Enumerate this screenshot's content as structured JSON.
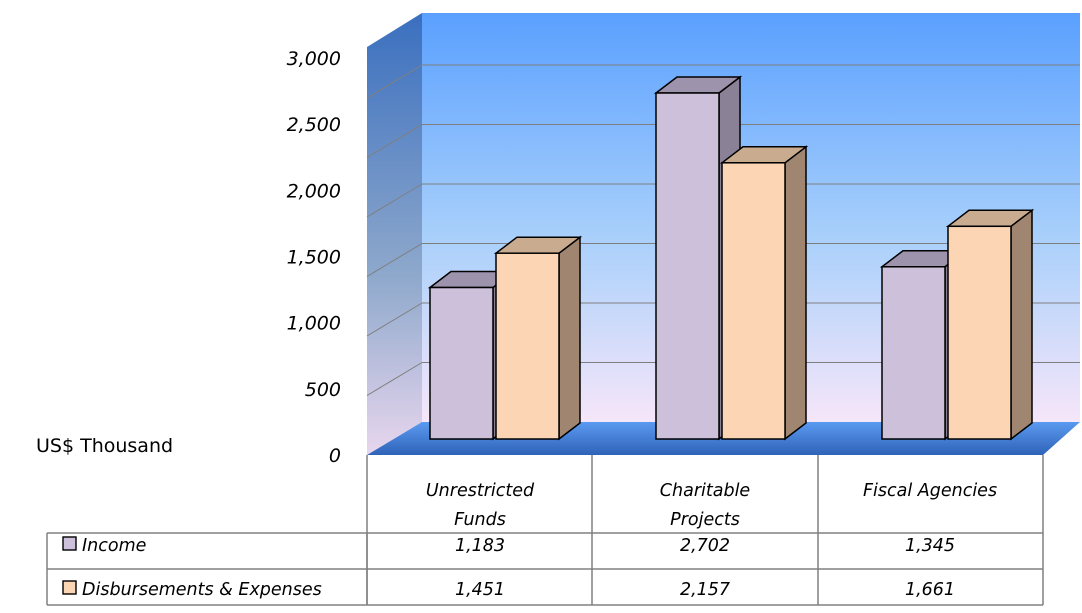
{
  "chart_data": {
    "type": "bar",
    "categories": [
      "Unrestricted Funds",
      "Charitable Projects",
      "Fiscal Agencies"
    ],
    "category_lines": [
      [
        "Unrestricted",
        "Funds"
      ],
      [
        "Charitable",
        "Projects"
      ],
      [
        "Fiscal Agencies"
      ]
    ],
    "series": [
      {
        "name": "Income",
        "values": [
          1183,
          2702,
          1345
        ],
        "value_labels": [
          "1,183",
          "2,702",
          "1,345"
        ],
        "color": "#ccc0da",
        "side_color": "#8a8196"
      },
      {
        "name": "Disbursements & Expenses",
        "values": [
          1451,
          2157,
          1661
        ],
        "value_labels": [
          "1,451",
          "2,157",
          "1,661"
        ],
        "color": "#fcd5b4",
        "side_color": "#a08670"
      }
    ],
    "ylabel": "US$ Thousand",
    "ylim": [
      0,
      3000
    ],
    "yticks": [
      0,
      500,
      1000,
      1500,
      2000,
      2500,
      3000
    ],
    "ytick_labels": [
      "0",
      "500",
      "1,000",
      "1,500",
      "2,000",
      "2,500",
      "3,000"
    ],
    "grid": true,
    "legend": "data-table",
    "style": "3d-clustered-column",
    "colors": {
      "wall_top": "#5aa0ff",
      "wall_bottom": "#f6e6fa",
      "side_wall_top": "#3a6fbf",
      "side_wall_bottom": "#e8d6ee",
      "floor": "#3f7fd8"
    }
  }
}
